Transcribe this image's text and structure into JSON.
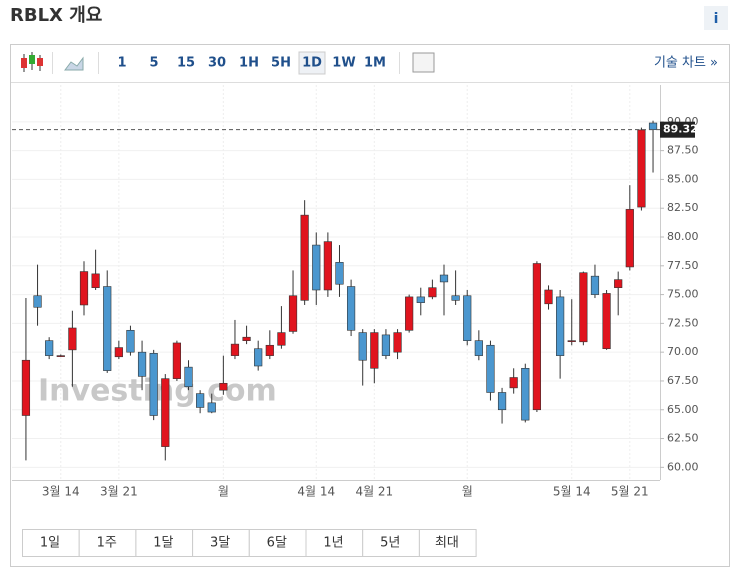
{
  "header": {
    "title": "RBLX 개요",
    "info": "i"
  },
  "toolbar": {
    "intervals": [
      "1",
      "5",
      "15",
      "30",
      "1H",
      "5H",
      "1D",
      "1W",
      "1M"
    ],
    "active": "1D",
    "technical_link": "기술 차트 »"
  },
  "ranges": [
    "1일",
    "1주",
    "1달",
    "3달",
    "6달",
    "1년",
    "5년",
    "최대"
  ],
  "chart_data": {
    "type": "candlestick",
    "watermark": "Investing.com",
    "up_color": "#e0141e",
    "down_color": "#4b97cf",
    "x": [
      0,
      1,
      2,
      3,
      4,
      5,
      6,
      7,
      8,
      9,
      10,
      11,
      12,
      13,
      14,
      15,
      16,
      17,
      18,
      19,
      20,
      21,
      22,
      23,
      24,
      25,
      26,
      27,
      28,
      29,
      30,
      31,
      32,
      33,
      34,
      35,
      36,
      37,
      38,
      39,
      40,
      41,
      42,
      43,
      44,
      45,
      46,
      47,
      48,
      49,
      50,
      51,
      52,
      53,
      54
    ],
    "open": [
      64.5,
      74.9,
      71.0,
      69.7,
      70.2,
      74.1,
      75.6,
      75.7,
      69.6,
      71.9,
      70.0,
      69.9,
      61.8,
      67.7,
      68.7,
      66.4,
      65.6,
      66.7,
      69.7,
      71.0,
      70.3,
      69.7,
      70.6,
      71.8,
      74.5,
      79.3,
      75.4,
      77.8,
      75.7,
      71.7,
      68.6,
      71.5,
      70.0,
      71.9,
      74.8,
      74.8,
      76.7,
      74.9,
      74.9,
      71.0,
      70.6,
      66.5,
      66.9,
      68.6,
      65.0,
      74.2,
      74.8,
      71.0,
      70.9,
      76.6,
      70.3,
      75.6,
      77.4,
      82.6,
      89.9
    ],
    "high": [
      74.7,
      77.6,
      71.3,
      69.8,
      73.6,
      77.9,
      78.9,
      77.1,
      71.0,
      72.3,
      71.0,
      70.2,
      68.1,
      71.0,
      69.3,
      66.7,
      66.4,
      69.7,
      72.8,
      72.3,
      71.0,
      71.9,
      74.0,
      77.1,
      83.2,
      80.4,
      80.4,
      79.3,
      76.3,
      72.0,
      72.0,
      72.0,
      72.0,
      75.0,
      75.6,
      76.3,
      77.6,
      77.1,
      75.4,
      71.9,
      71.0,
      66.9,
      68.6,
      69.0,
      77.9,
      75.8,
      75.4,
      74.6,
      77.0,
      77.6,
      75.4,
      77.0,
      84.5,
      89.5,
      90.1
    ],
    "low": [
      60.6,
      72.3,
      69.4,
      69.6,
      67.0,
      73.2,
      75.4,
      68.2,
      69.4,
      69.7,
      66.7,
      64.1,
      60.6,
      67.5,
      66.7,
      64.7,
      64.7,
      66.3,
      69.4,
      70.7,
      68.4,
      69.4,
      70.3,
      71.6,
      74.1,
      74.1,
      74.8,
      74.8,
      71.4,
      67.1,
      67.3,
      69.4,
      69.4,
      71.7,
      73.2,
      74.6,
      73.2,
      74.1,
      70.6,
      69.3,
      65.8,
      63.8,
      66.4,
      63.9,
      64.8,
      73.7,
      67.7,
      70.6,
      70.6,
      74.7,
      70.2,
      73.2,
      77.1,
      82.3,
      85.6
    ],
    "close": [
      69.3,
      73.9,
      69.7,
      69.7,
      72.1,
      77.0,
      76.8,
      68.4,
      70.4,
      70.0,
      67.9,
      64.5,
      67.7,
      70.8,
      67.0,
      65.2,
      64.8,
      67.3,
      70.7,
      71.3,
      68.8,
      70.6,
      71.7,
      74.9,
      81.9,
      75.4,
      79.6,
      75.9,
      71.9,
      69.3,
      71.7,
      69.7,
      71.7,
      74.8,
      74.3,
      75.6,
      76.1,
      74.5,
      71.0,
      69.7,
      66.5,
      65.0,
      67.8,
      64.1,
      77.7,
      75.4,
      69.7,
      71.0,
      76.9,
      75.0,
      75.1,
      76.3,
      82.4,
      89.3,
      89.32
    ],
    "last_price": 89.32,
    "xlim": [
      -1.2,
      54.6
    ],
    "xticks": [
      {
        "value": 3,
        "label": "3월 14"
      },
      {
        "value": 8,
        "label": "3월 21"
      },
      {
        "value": 17,
        "label": "월"
      },
      {
        "value": 25,
        "label": "4월 14"
      },
      {
        "value": 30,
        "label": "4월 21"
      },
      {
        "value": 38,
        "label": "월"
      },
      {
        "value": 47,
        "label": "5월 14"
      },
      {
        "value": 52,
        "label": "5월 21"
      }
    ],
    "ylim": [
      58.9,
      93.2
    ],
    "yticks": [
      {
        "value": 60,
        "label": "60.00"
      },
      {
        "value": 62.5,
        "label": "62.50"
      },
      {
        "value": 65,
        "label": "65.00"
      },
      {
        "value": 67.5,
        "label": "67.50"
      },
      {
        "value": 70,
        "label": "70.00"
      },
      {
        "value": 72.5,
        "label": "72.50"
      },
      {
        "value": 75,
        "label": "75.00"
      },
      {
        "value": 77.5,
        "label": "77.50"
      },
      {
        "value": 80,
        "label": "80.00"
      },
      {
        "value": 82.5,
        "label": "82.50"
      },
      {
        "value": 85,
        "label": "85.00"
      },
      {
        "value": 87.5,
        "label": "87.50"
      },
      {
        "value": 90,
        "label": "90.00"
      }
    ],
    "grid": true
  }
}
